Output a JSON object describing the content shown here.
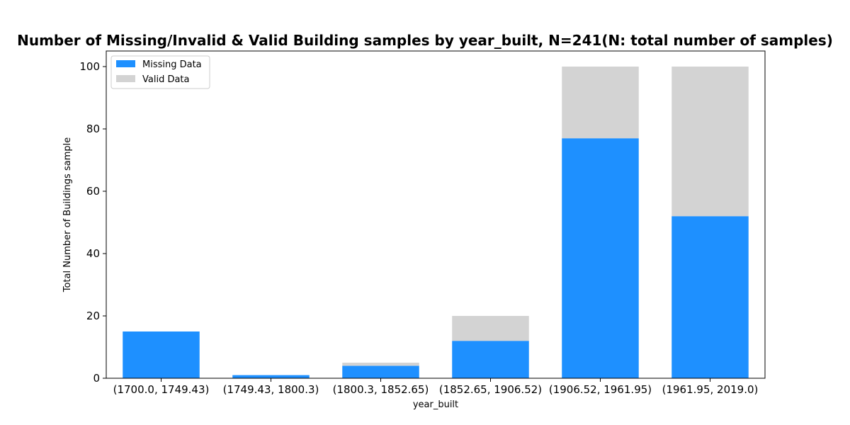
{
  "chart_data": {
    "type": "bar",
    "stacked": true,
    "title": "Number of Missing/Invalid & Valid Building samples by year_built, N=241(N: total number of samples)",
    "xlabel": "year_built",
    "ylabel": "Total Number of Buildings sample",
    "categories": [
      "(1700.0, 1749.43)",
      "(1749.43, 1800.3)",
      "(1800.3, 1852.65)",
      "(1852.65, 1906.52)",
      "(1906.52, 1961.95)",
      "(1961.95, 2019.0)"
    ],
    "series": [
      {
        "name": "Missing Data",
        "color": "#1e90ff",
        "values": [
          15,
          1,
          4,
          12,
          77,
          52
        ]
      },
      {
        "name": "Valid Data",
        "color": "#d3d3d3",
        "values": [
          0,
          0,
          1,
          8,
          23,
          48
        ]
      }
    ],
    "ylim": [
      0,
      105
    ],
    "yticks": [
      0,
      20,
      40,
      60,
      80,
      100
    ],
    "grid": false,
    "legend_position": "upper-left"
  }
}
